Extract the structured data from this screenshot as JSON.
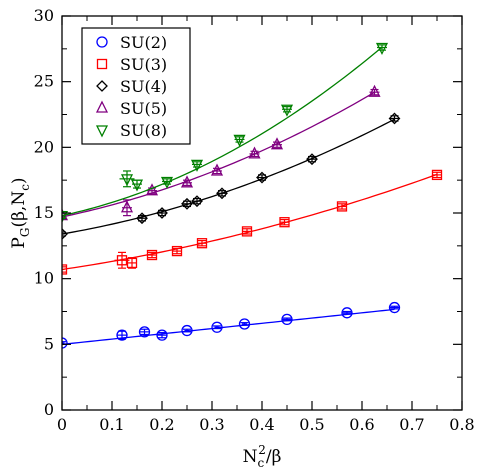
{
  "chart_data": {
    "type": "scatter",
    "xlabel": {
      "main": "N",
      "sub": "c",
      "sup": "2",
      "rest": "/β"
    },
    "ylabel": {
      "main": "P",
      "sub": "G",
      "rest": "(β,N",
      "sub2": "c",
      "end": ")"
    },
    "xlim": [
      0,
      0.8
    ],
    "ylim": [
      0,
      30
    ],
    "xticks": [
      0,
      0.1,
      0.2,
      0.3,
      0.4,
      0.5,
      0.6,
      0.7,
      0.8
    ],
    "xtick_labels": [
      "0",
      "0.1",
      "0.2",
      "0.3",
      "0.4",
      "0.5",
      "0.6",
      "0.7",
      "0.8"
    ],
    "yticks": [
      0,
      5,
      10,
      15,
      20,
      25,
      30
    ],
    "ytick_labels": [
      "0",
      "5",
      "10",
      "15",
      "20",
      "25",
      "30"
    ],
    "legend_position": "top-left",
    "grid": false,
    "series": [
      {
        "name": "SU(2)",
        "marker": "circle",
        "color": "#0000ff",
        "points": [
          {
            "x": 0.0,
            "y": 5.1,
            "xerr": 0.005,
            "yerr": 0.1
          },
          {
            "x": 0.12,
            "y": 5.7,
            "xerr": 0.01,
            "yerr": 0.3
          },
          {
            "x": 0.165,
            "y": 5.95,
            "xerr": 0.01,
            "yerr": 0.2
          },
          {
            "x": 0.2,
            "y": 5.7,
            "xerr": 0.01,
            "yerr": 0.2
          },
          {
            "x": 0.25,
            "y": 6.05,
            "xerr": 0.005,
            "yerr": 0.1
          },
          {
            "x": 0.31,
            "y": 6.3,
            "xerr": 0.005,
            "yerr": 0.1
          },
          {
            "x": 0.365,
            "y": 6.55,
            "xerr": 0.005,
            "yerr": 0.1
          },
          {
            "x": 0.45,
            "y": 6.9,
            "xerr": 0.01,
            "yerr": 0.1
          },
          {
            "x": 0.57,
            "y": 7.4,
            "xerr": 0.01,
            "yerr": 0.1
          },
          {
            "x": 0.665,
            "y": 7.8,
            "xerr": 0.01,
            "yerr": 0.1
          }
        ],
        "fit": {
          "a": 5.0,
          "b": 4.0,
          "c": 0.0
        }
      },
      {
        "name": "SU(3)",
        "marker": "square",
        "color": "#ff0000",
        "points": [
          {
            "x": 0.0,
            "y": 10.7,
            "xerr": 0.005,
            "yerr": 0.2
          },
          {
            "x": 0.12,
            "y": 11.4,
            "xerr": 0.015,
            "yerr": 0.6
          },
          {
            "x": 0.14,
            "y": 11.2,
            "xerr": 0.01,
            "yerr": 0.4
          },
          {
            "x": 0.18,
            "y": 11.8,
            "xerr": 0.01,
            "yerr": 0.2
          },
          {
            "x": 0.23,
            "y": 12.1,
            "xerr": 0.01,
            "yerr": 0.2
          },
          {
            "x": 0.28,
            "y": 12.7,
            "xerr": 0.01,
            "yerr": 0.2
          },
          {
            "x": 0.37,
            "y": 13.6,
            "xerr": 0.01,
            "yerr": 0.2
          },
          {
            "x": 0.445,
            "y": 14.3,
            "xerr": 0.01,
            "yerr": 0.2
          },
          {
            "x": 0.56,
            "y": 15.5,
            "xerr": 0.01,
            "yerr": 0.2
          },
          {
            "x": 0.75,
            "y": 17.9,
            "xerr": 0.01,
            "yerr": 0.2
          }
        ],
        "fit": {
          "a": 10.7,
          "b": 5.6,
          "c": 5.4
        }
      },
      {
        "name": "SU(4)",
        "marker": "diamond",
        "color": "#000000",
        "points": [
          {
            "x": 0.0,
            "y": 13.4,
            "xerr": 0.005,
            "yerr": 0.15
          },
          {
            "x": 0.16,
            "y": 14.6,
            "xerr": 0.01,
            "yerr": 0.2
          },
          {
            "x": 0.2,
            "y": 15.0,
            "xerr": 0.01,
            "yerr": 0.2
          },
          {
            "x": 0.25,
            "y": 15.7,
            "xerr": 0.01,
            "yerr": 0.2
          },
          {
            "x": 0.27,
            "y": 15.9,
            "xerr": 0.01,
            "yerr": 0.2
          },
          {
            "x": 0.32,
            "y": 16.5,
            "xerr": 0.01,
            "yerr": 0.2
          },
          {
            "x": 0.4,
            "y": 17.7,
            "xerr": 0.01,
            "yerr": 0.2
          },
          {
            "x": 0.5,
            "y": 19.1,
            "xerr": 0.01,
            "yerr": 0.2
          },
          {
            "x": 0.665,
            "y": 22.2,
            "xerr": 0.01,
            "yerr": 0.2
          }
        ],
        "fit": {
          "a": 13.4,
          "b": 6.5,
          "c": 10.0
        }
      },
      {
        "name": "SU(5)",
        "marker": "triangle-up",
        "color": "#800080",
        "points": [
          {
            "x": 0.0,
            "y": 14.8,
            "xerr": 0.005,
            "yerr": 0.2
          },
          {
            "x": 0.13,
            "y": 15.4,
            "xerr": 0.01,
            "yerr": 0.6
          },
          {
            "x": 0.18,
            "y": 16.7,
            "xerr": 0.01,
            "yerr": 0.2
          },
          {
            "x": 0.25,
            "y": 17.3,
            "xerr": 0.01,
            "yerr": 0.2
          },
          {
            "x": 0.31,
            "y": 18.2,
            "xerr": 0.01,
            "yerr": 0.2
          },
          {
            "x": 0.385,
            "y": 19.5,
            "xerr": 0.01,
            "yerr": 0.2
          },
          {
            "x": 0.43,
            "y": 20.2,
            "xerr": 0.01,
            "yerr": 0.2
          },
          {
            "x": 0.625,
            "y": 24.2,
            "xerr": 0.01,
            "yerr": 0.2
          }
        ],
        "fit": {
          "a": 14.7,
          "b": 8.0,
          "c": 11.5
        }
      },
      {
        "name": "SU(8)",
        "marker": "triangle-down",
        "color": "#008000",
        "points": [
          {
            "x": 0.0,
            "y": 14.8,
            "xerr": 0.005,
            "yerr": 0.2
          },
          {
            "x": 0.13,
            "y": 17.6,
            "xerr": 0.015,
            "yerr": 0.6
          },
          {
            "x": 0.15,
            "y": 17.2,
            "xerr": 0.01,
            "yerr": 0.3
          },
          {
            "x": 0.21,
            "y": 17.4,
            "xerr": 0.01,
            "yerr": 0.2
          },
          {
            "x": 0.27,
            "y": 18.7,
            "xerr": 0.01,
            "yerr": 0.2
          },
          {
            "x": 0.355,
            "y": 20.6,
            "xerr": 0.01,
            "yerr": 0.2
          },
          {
            "x": 0.45,
            "y": 22.9,
            "xerr": 0.01,
            "yerr": 0.2
          },
          {
            "x": 0.64,
            "y": 27.6,
            "xerr": 0.01,
            "yerr": 0.2
          }
        ],
        "fit": {
          "a": 14.8,
          "b": 8.2,
          "c": 18.5
        }
      }
    ]
  }
}
